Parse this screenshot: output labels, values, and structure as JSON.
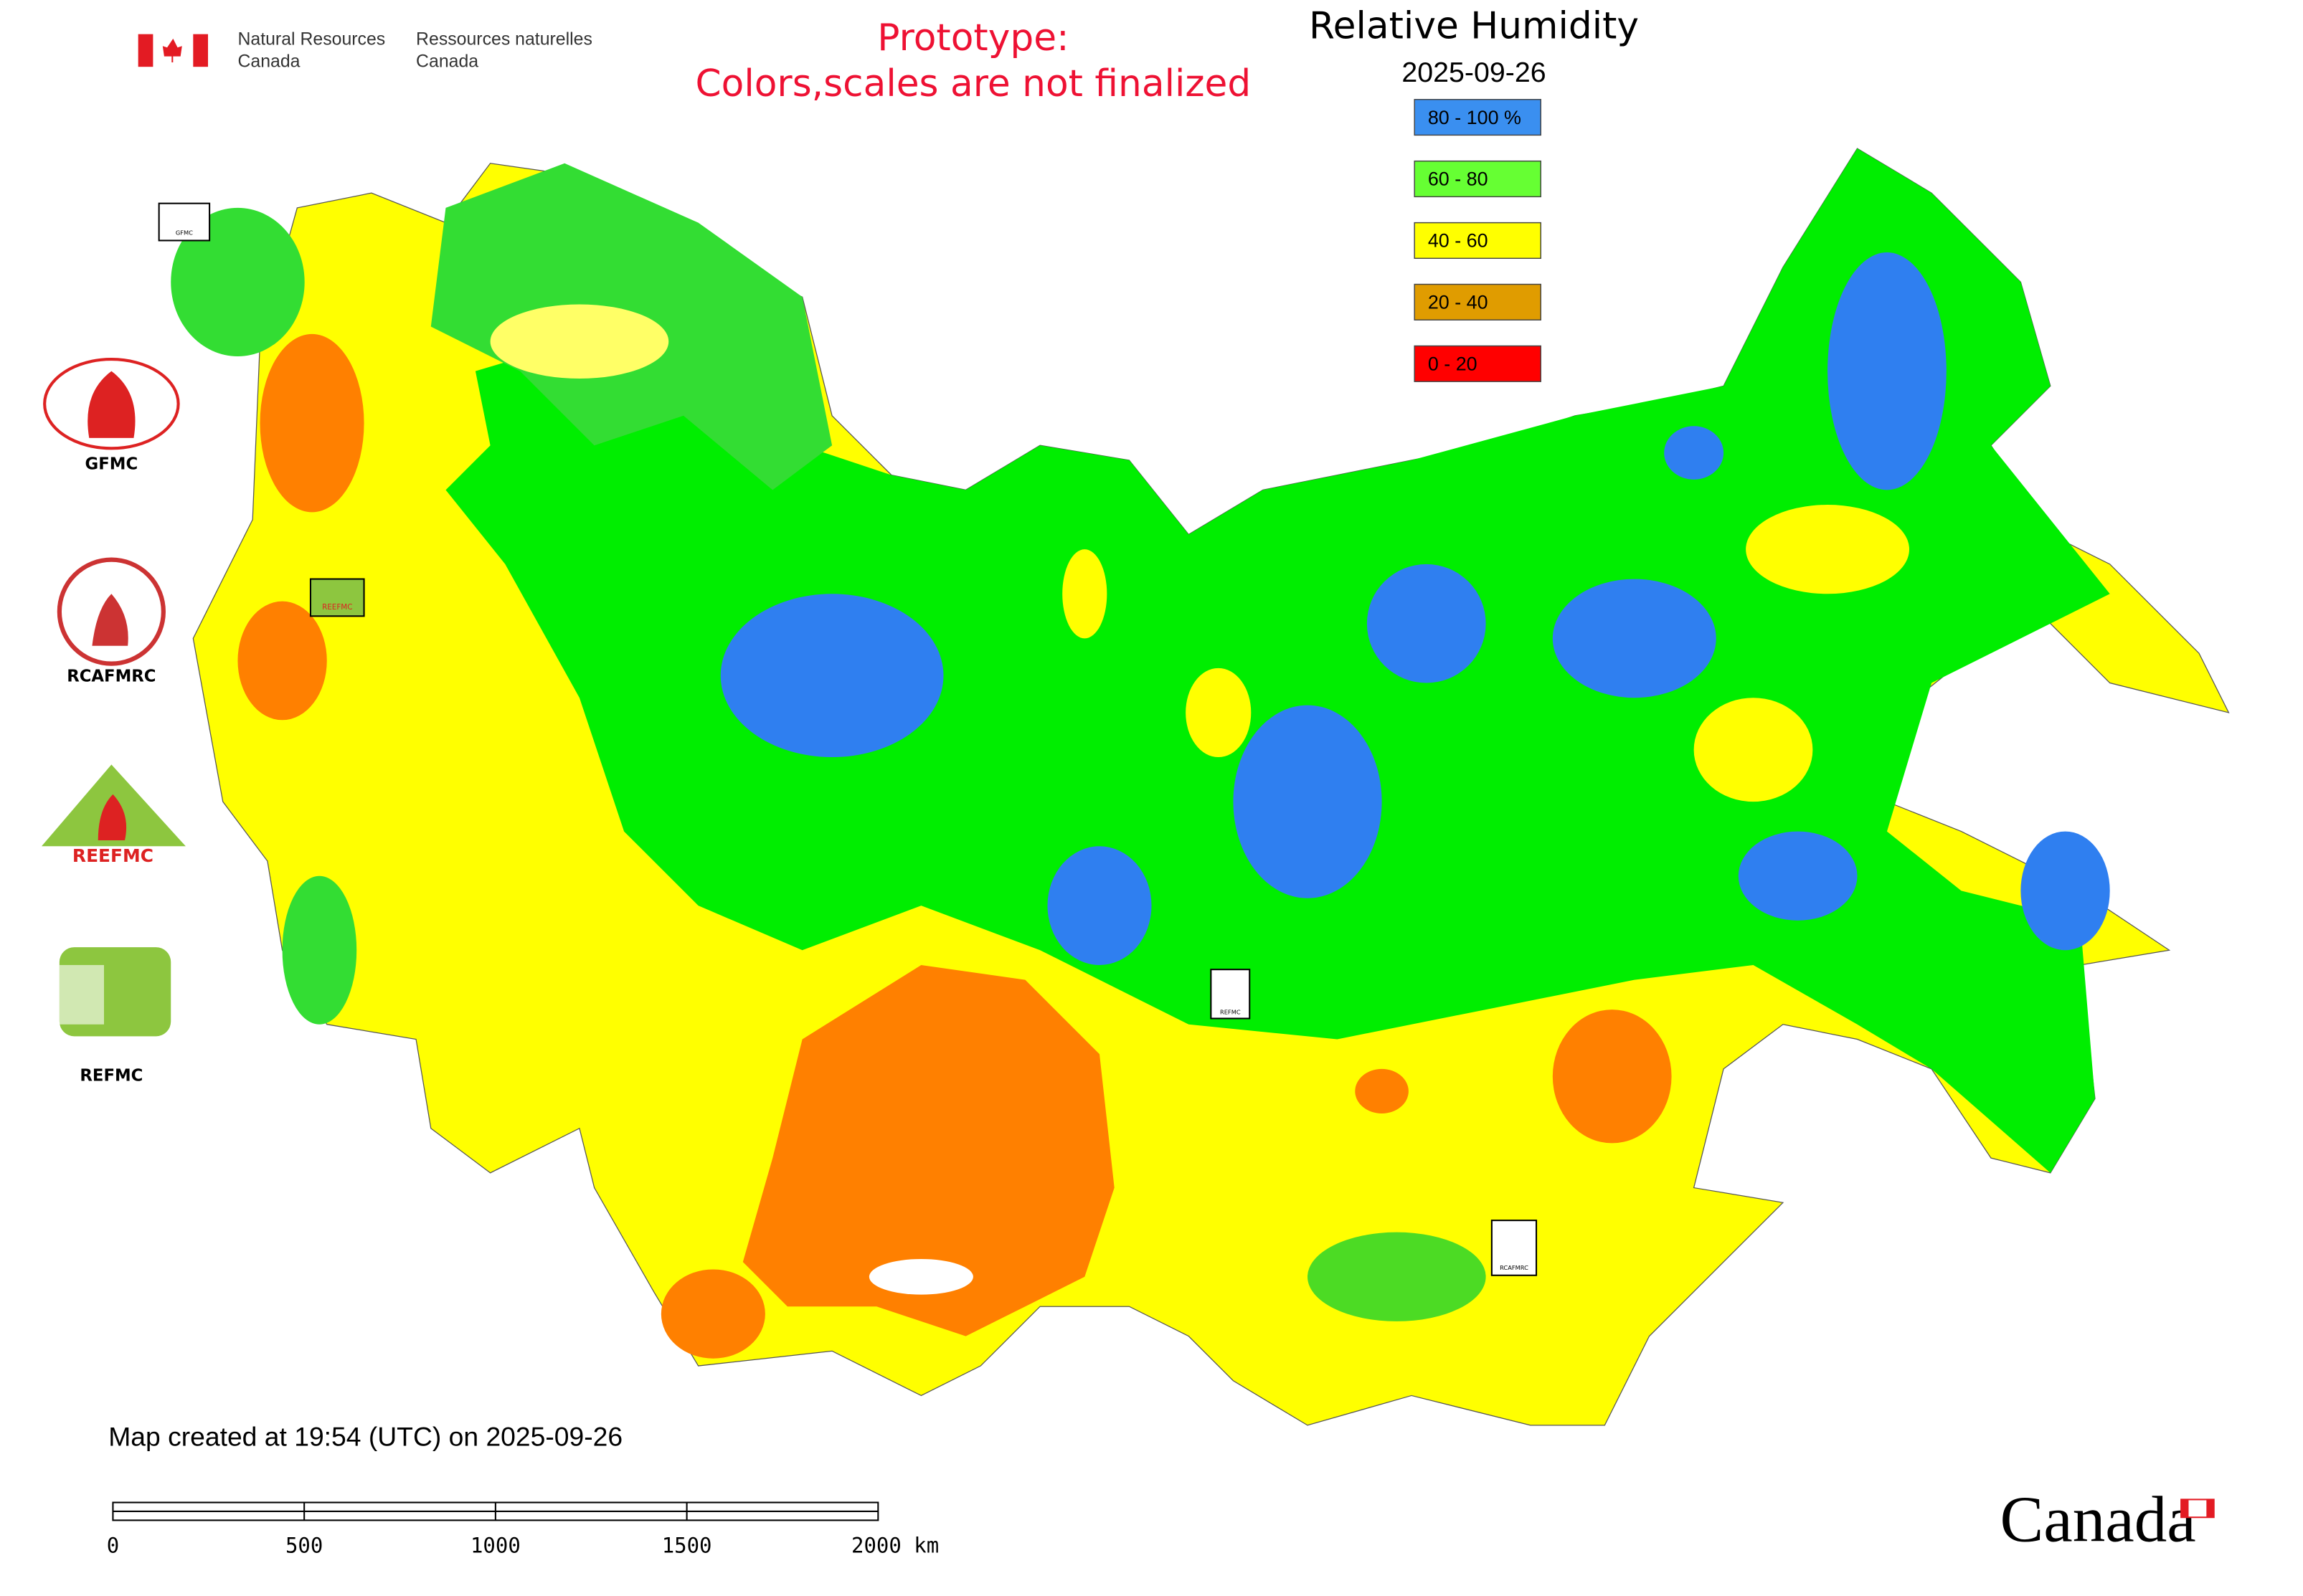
{
  "header": {
    "agency_en": [
      "Natural Resources",
      "Canada"
    ],
    "agency_fr": [
      "Ressources naturelles",
      "Canada"
    ],
    "notice": [
      "Prototype:",
      "Colors,scales are not finalized"
    ]
  },
  "legend": {
    "title": "Relative Humidity",
    "date": "2025-09-26",
    "items": [
      {
        "label": "80 - 100 %",
        "color": "#3a8ff0"
      },
      {
        "label": "60 - 80",
        "color": "#66ff33"
      },
      {
        "label": "40 - 60",
        "color": "#ffff00"
      },
      {
        "label": "20 - 40",
        "color": "#e09c00"
      },
      {
        "label": "0 - 20",
        "color": "#ff0000"
      }
    ]
  },
  "logos": [
    "GFMC",
    "RCAFMRC",
    "REEFMC",
    "REFMC"
  ],
  "markers": [
    "GFMC",
    "REEFMC",
    "REFMC",
    "RCAFMRC"
  ],
  "footer": {
    "created": "Map created at 19:54 (UTC) on 2025-09-26",
    "scale_labels": [
      "0",
      "500",
      "1000",
      "1500",
      "2000 km"
    ],
    "wordmark": "Canada"
  }
}
